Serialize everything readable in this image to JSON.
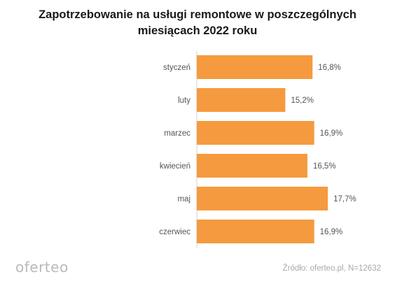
{
  "chart_data": {
    "type": "bar",
    "orientation": "horizontal",
    "title": "Zapotrzebowanie na usługi remontowe w poszczególnych miesiącach 2022 roku",
    "categories": [
      "styczeń",
      "luty",
      "marzec",
      "kwiecień",
      "maj",
      "czerwiec"
    ],
    "values": [
      16.8,
      15.2,
      16.9,
      16.5,
      17.7,
      16.9
    ],
    "value_labels": [
      "16,8%",
      "15,2%",
      "16,9%",
      "16,5%",
      "17,7%",
      "16,9%"
    ],
    "xlabel": "",
    "ylabel": "",
    "bar_color": "#F59A3E",
    "grid": false,
    "legend": "none"
  },
  "footer": {
    "logo_text": "oferteo",
    "source": "Źródło: oferteo.pl, N=12632"
  }
}
